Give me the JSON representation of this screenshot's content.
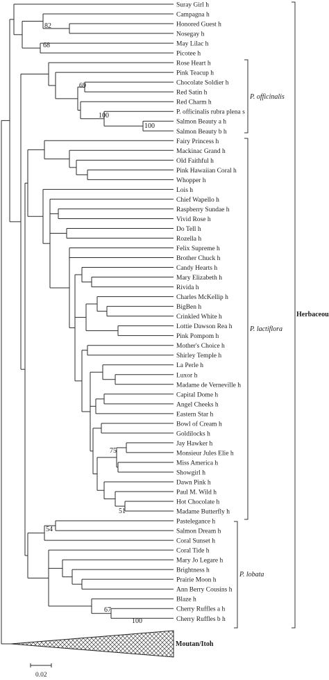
{
  "leaves": [
    "Suray Girl h",
    "Campagna h",
    "Honored Guest h",
    "Nosegay h",
    "May Lilac h",
    "Picotee h",
    "Rose Heart h",
    "Pink Teacup h",
    "Chocolate Soldier h",
    "Red Satin h",
    "Red Charm h",
    "P. officinalis rubra plena s",
    "Salmon Beauty a h",
    "Salmon Beauty b h",
    "Fairy Princess h",
    "Mackinac Grand h",
    "Old Faithful h",
    "Pink Hawaiian Coral h",
    "Whopper h",
    "Lois h",
    "Chief Wapello h",
    "Raspberry Sundae h",
    "Vivid Rose h",
    "Do Tell h",
    "Rozella h",
    "Felix Supreme h",
    "Brother Chuck h",
    "Candy Hearts h",
    "Mary Elizabeth h",
    "Rivida h",
    "Charles McKellip h",
    "BigBen h",
    "Crinkled White h",
    "Lottie Dawson Rea h",
    "Pink Pompom h",
    "Mother's Choice h",
    "Shirley Temple h",
    "La Perle h",
    "Luxor h",
    "Madame de Verneville h",
    "Capital Dome h",
    "Angel Cheeks h",
    "Eastern Star h",
    "Bowl of Cream h",
    "Goldilocks h",
    "Jay Hawker h",
    "Monsieur Jules Elie h",
    "Miss America h",
    "Showgirl h",
    "Dawn Pink h",
    "Paul M. Wild h",
    "Hot Chocolate h",
    "Madame Butterfly h",
    "Pastelegance h",
    "Salmon Dream h",
    "Coral Sunset h",
    "Coral Tide h",
    "Mary Jo Legare h",
    "Brightness h",
    "Prairie Moon h",
    "Ann Berry Cousins h",
    "Blaze h",
    "Cherry Ruffles a h",
    "Cherry Ruffles b h"
  ],
  "bootstrap": [
    "82",
    "68",
    "69",
    "100",
    "100",
    "75",
    "51",
    "54",
    "67",
    "100"
  ],
  "clades": {
    "officinalis": "P. officinalis",
    "lactiflora": "P. lactiflora",
    "lobata": "P. lobata",
    "herbaceous": "Herbaceous",
    "moutan": "Moutan/Itoh"
  },
  "scale_bar": "0.02"
}
